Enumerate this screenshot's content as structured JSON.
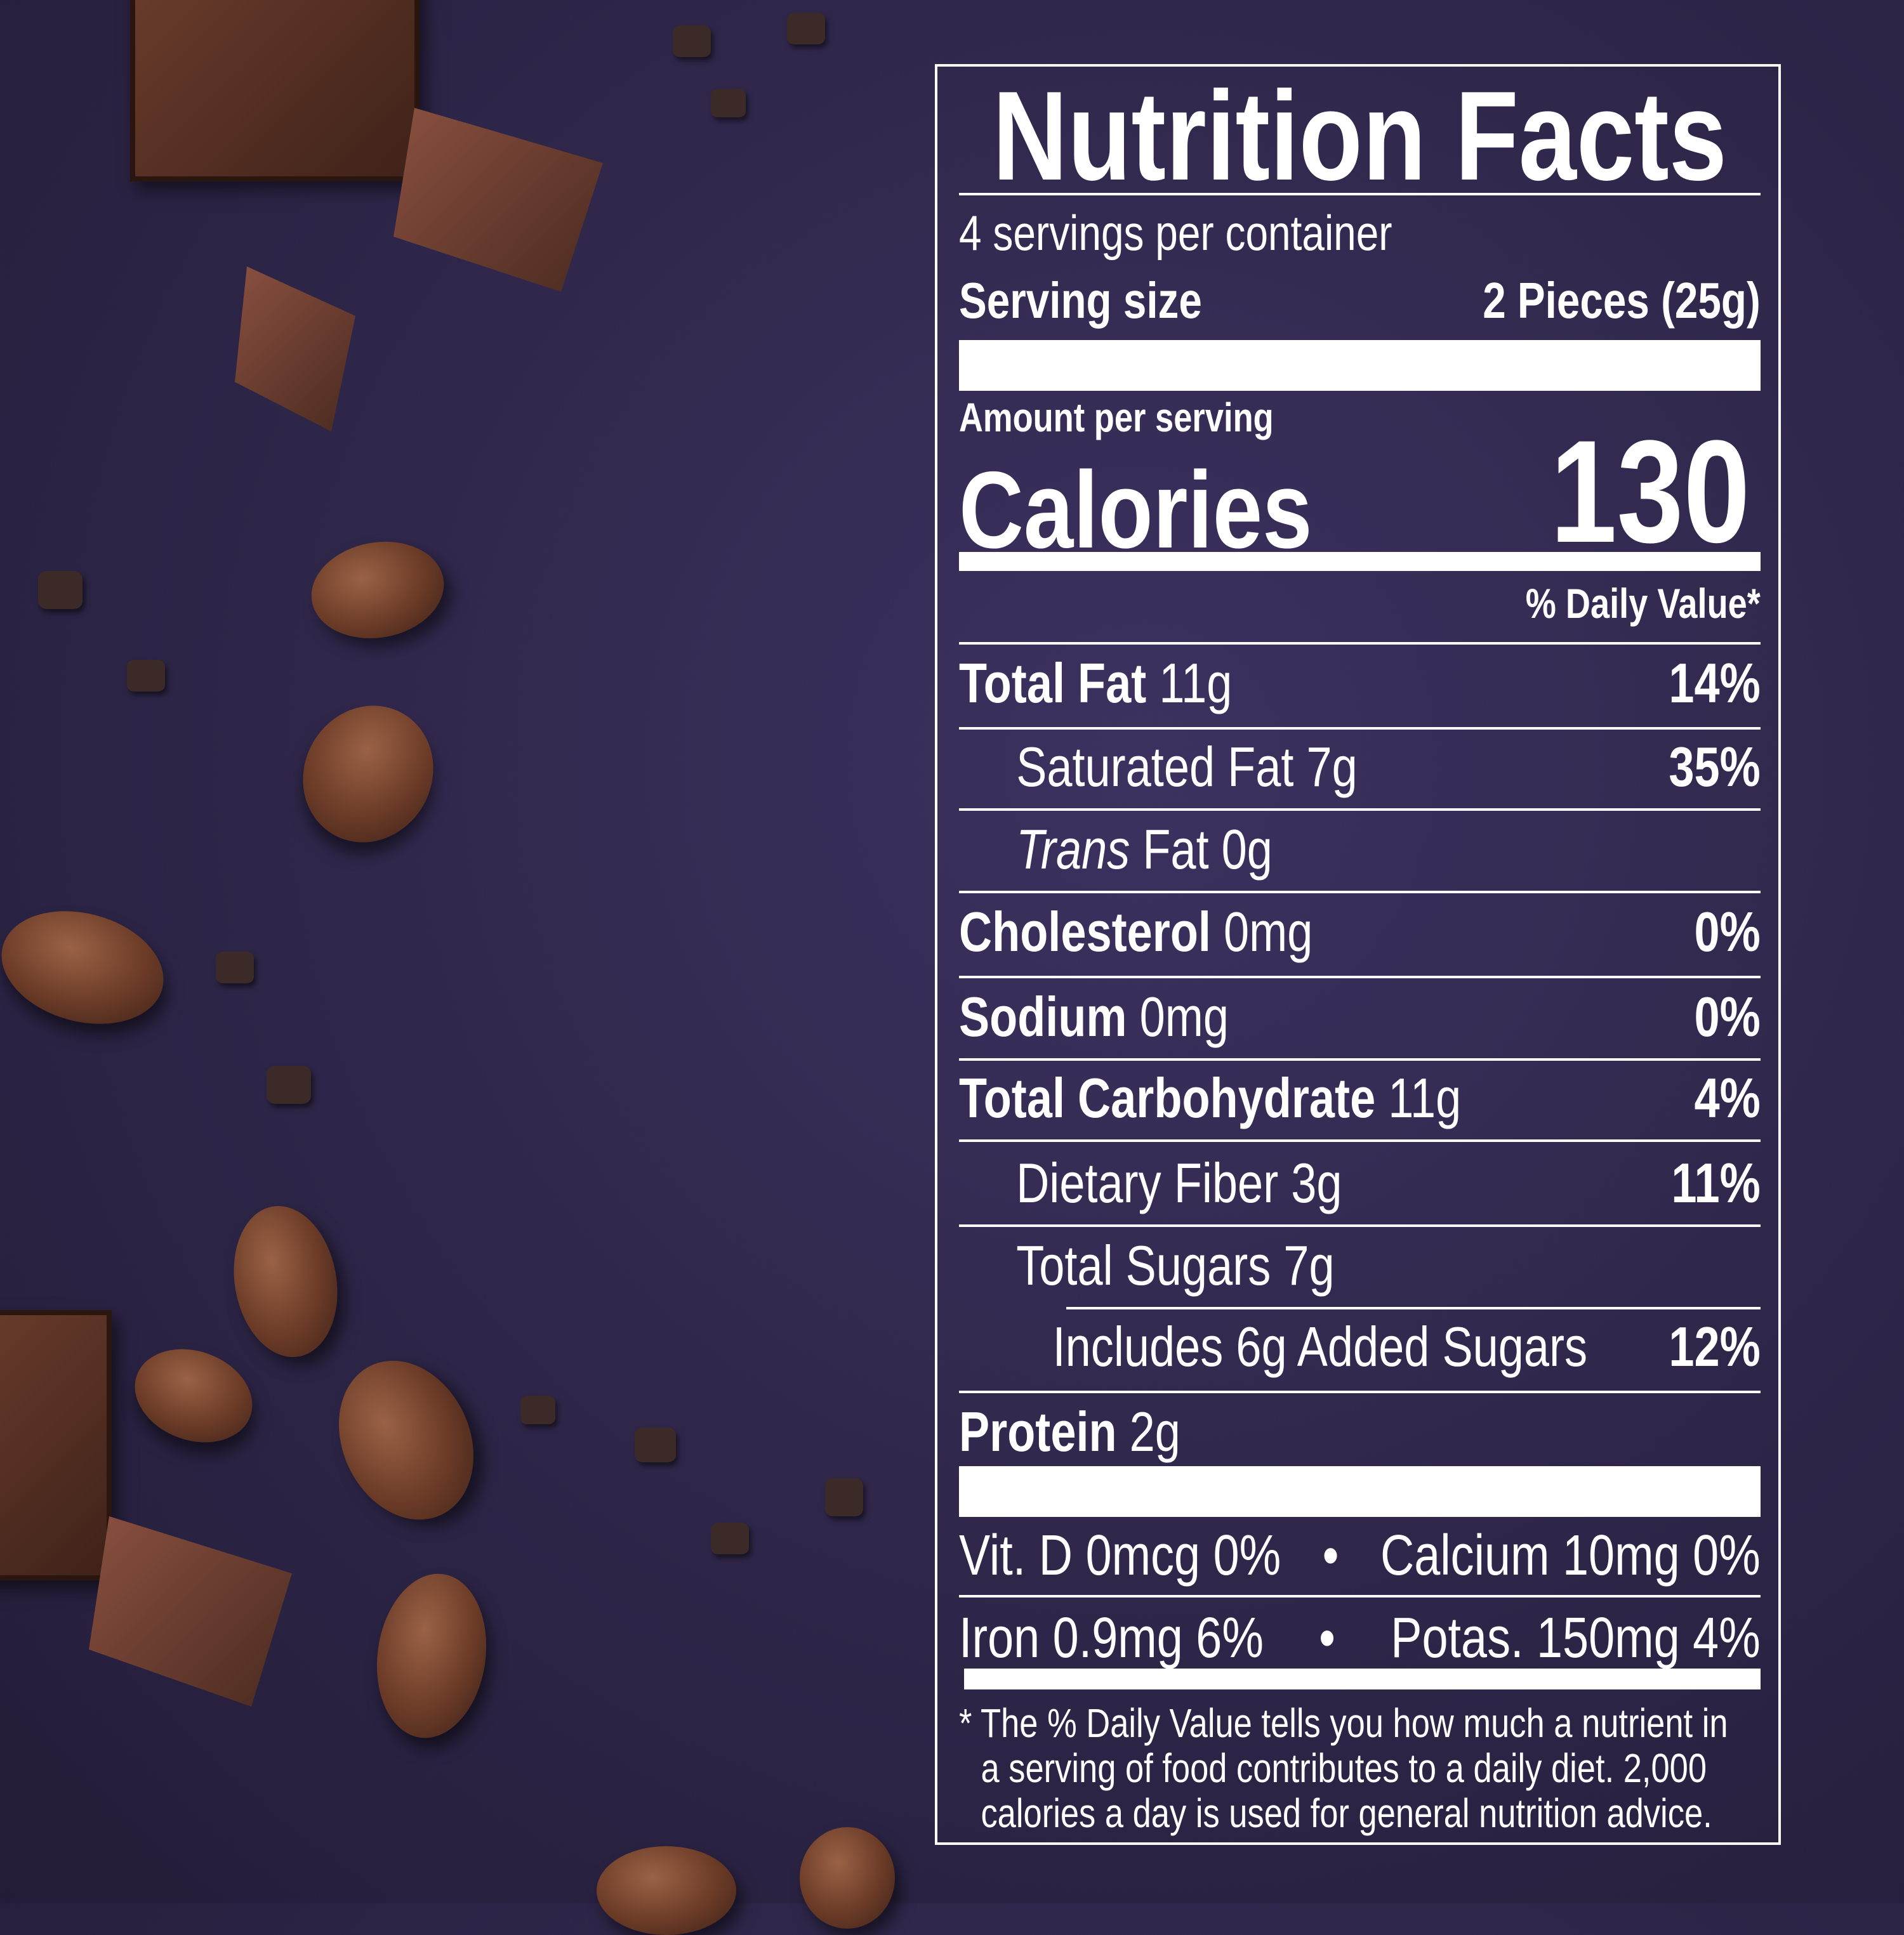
{
  "label": {
    "title": "Nutrition Facts",
    "servings_per_container": "4 servings per container",
    "serving_size_label": "Serving size",
    "serving_size_value": "2 Pieces (25g)",
    "amount_per_serving": "Amount per serving",
    "calories_label": "Calories",
    "calories_value": "130",
    "daily_value_header": "% Daily Value*",
    "nutrients": [
      {
        "name": "Total Fat",
        "amount": "11g",
        "dv": "14%"
      },
      {
        "name": "Saturated Fat",
        "amount": "7g",
        "dv": "35%"
      },
      {
        "name": "Trans",
        "name_suffix": "Fat",
        "amount": "0g",
        "dv": ""
      },
      {
        "name": "Cholesterol",
        "amount": "0mg",
        "dv": "0%"
      },
      {
        "name": "Sodium",
        "amount": "0mg",
        "dv": "0%"
      },
      {
        "name": "Total Carbohydrate",
        "amount": "11g",
        "dv": "4%"
      },
      {
        "name": "Dietary Fiber",
        "amount": "3g",
        "dv": "11%"
      },
      {
        "name": "Total Sugars",
        "amount": "7g",
        "dv": ""
      },
      {
        "name": "Includes 6g Added Sugars",
        "amount": "",
        "dv": "12%"
      },
      {
        "name": "Protein",
        "amount": "2g",
        "dv": ""
      }
    ],
    "vitamins_row1_left": "Vit. D 0mcg 0%",
    "vitamins_row1_right": "Calcium 10mg 0%",
    "vitamins_row2_left": "Iron 0.9mg 6%",
    "vitamins_row2_right": "Potas. 150mg 4%",
    "bullet": "•",
    "footnote": [
      "* The % Daily Value tells you how much a nutrient in",
      "a serving of food contributes to a daily diet. 2,000",
      "calories a day is used for general nutrition advice."
    ]
  },
  "colors": {
    "background": "#2e2648",
    "text": "#ffffff",
    "bean": "#6b3b27"
  }
}
